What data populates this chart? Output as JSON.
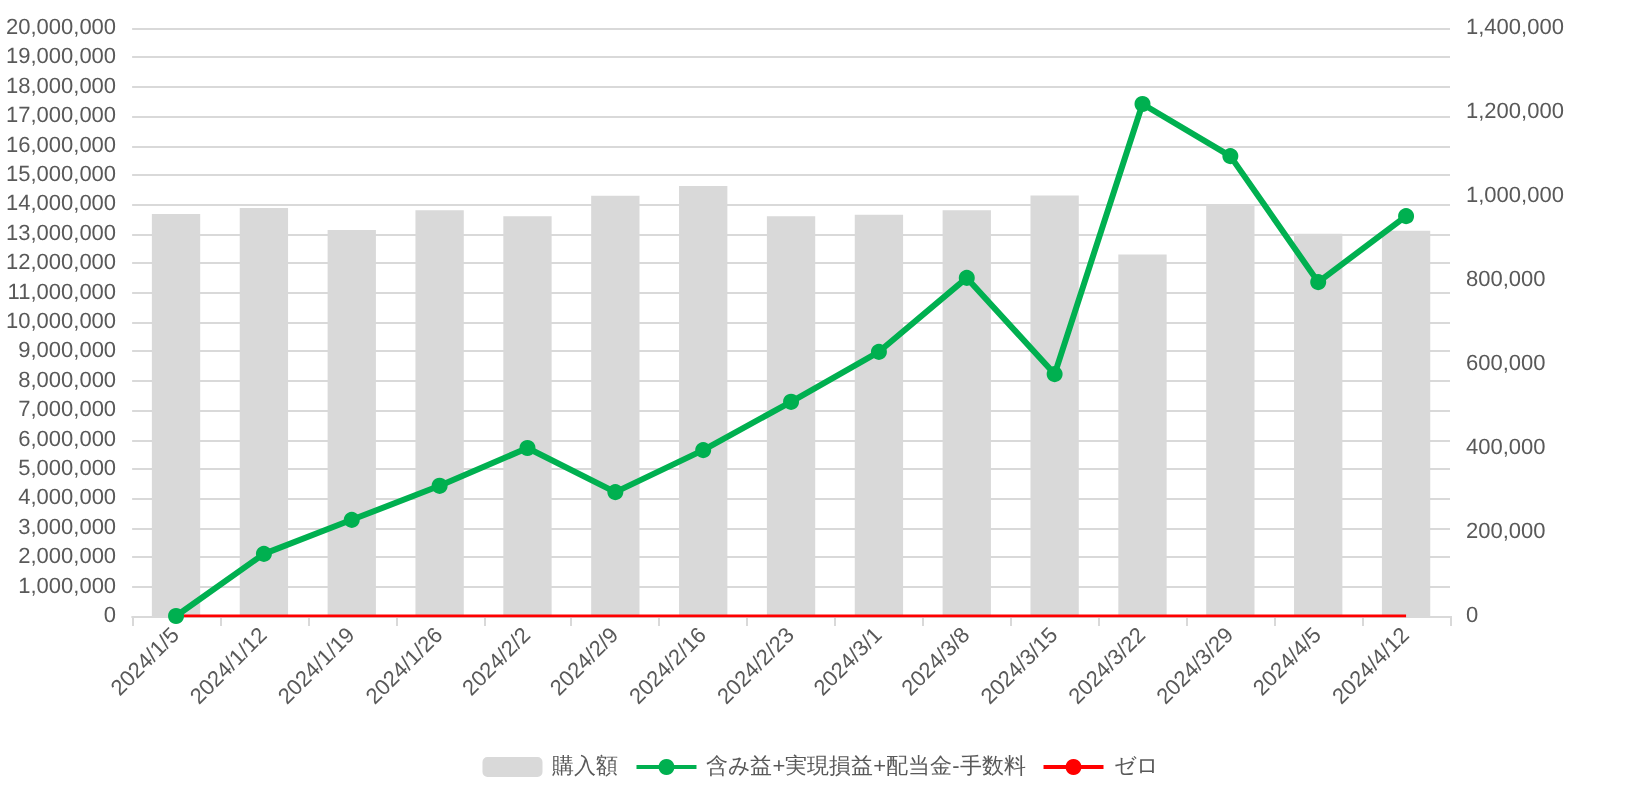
{
  "chart_data": {
    "type": "bar",
    "categories": [
      "2024/1/5",
      "2024/1/12",
      "2024/1/19",
      "2024/1/26",
      "2024/2/2",
      "2024/2/9",
      "2024/2/16",
      "2024/2/23",
      "2024/3/1",
      "2024/3/8",
      "2024/3/15",
      "2024/3/22",
      "2024/3/29",
      "2024/4/5",
      "2024/4/12"
    ],
    "series": [
      {
        "name": "購入額",
        "color": "#d9d9d9",
        "values": [
          13670000,
          13880000,
          13130000,
          13800000,
          13600000,
          14290000,
          14630000,
          13600000,
          13650000,
          13800000,
          14300000,
          12300000,
          14000000,
          13000000,
          13100000
        ]
      },
      {
        "name": "含み益+実現損益+配当金-手数料",
        "type": "line",
        "axis": "y2",
        "color": "#00b050",
        "marker": "circle",
        "values": [
          0,
          148000,
          229000,
          310000,
          400000,
          295000,
          395000,
          510000,
          629000,
          805000,
          576000,
          1219000,
          1095000,
          795000,
          952000
        ]
      },
      {
        "name": "ゼロ",
        "type": "line",
        "axis": "y2",
        "color": "#ff0000",
        "marker": "none",
        "values": [
          0,
          0,
          0,
          0,
          0,
          0,
          0,
          0,
          0,
          0,
          0,
          0,
          0,
          0,
          0
        ]
      }
    ],
    "ylim": [
      0,
      20000000
    ],
    "yticks": [
      0,
      {
        "value": 1000000,
        "label": "1,000,000"
      },
      {
        "value": 2000000,
        "label": "2,000,000"
      },
      {
        "value": 3000000,
        "label": "3,000,000"
      },
      {
        "value": 4000000,
        "label": "4,000,000"
      },
      {
        "value": 5000000,
        "label": "5,000,000"
      },
      {
        "value": 6000000,
        "label": "6,000,000"
      },
      {
        "value": 7000000,
        "label": "7,000,000"
      },
      {
        "value": 8000000,
        "label": "8,000,000"
      },
      {
        "value": 9000000,
        "label": "9,000,000"
      },
      {
        "value": 10000000,
        "label": "10,000,000"
      },
      {
        "value": 11000000,
        "label": "11,000,000"
      },
      {
        "value": 12000000,
        "label": "12,000,000"
      },
      {
        "value": 13000000,
        "label": "13,000,000"
      },
      {
        "value": 14000000,
        "label": "14,000,000"
      },
      {
        "value": 15000000,
        "label": "15,000,000"
      },
      {
        "value": 16000000,
        "label": "16,000,000"
      },
      {
        "value": 17000000,
        "label": "17,000,000"
      },
      {
        "value": 18000000,
        "label": "18,000,000"
      },
      {
        "value": 19000000,
        "label": "19,000,000"
      },
      {
        "value": 20000000,
        "label": "20,000,000"
      }
    ],
    "y2lim": [
      0,
      1400000
    ],
    "y2ticks": [
      0,
      {
        "value": 200000,
        "label": "200,000"
      },
      {
        "value": 400000,
        "label": "400,000"
      },
      {
        "value": 600000,
        "label": "600,000"
      },
      {
        "value": 800000,
        "label": "800,000"
      },
      {
        "value": 1000000,
        "label": "1,000,000"
      },
      {
        "value": 1200000,
        "label": "1,200,000"
      },
      {
        "value": 1400000,
        "label": "1,400,000"
      }
    ],
    "grid": "y",
    "legend": "bottom"
  }
}
